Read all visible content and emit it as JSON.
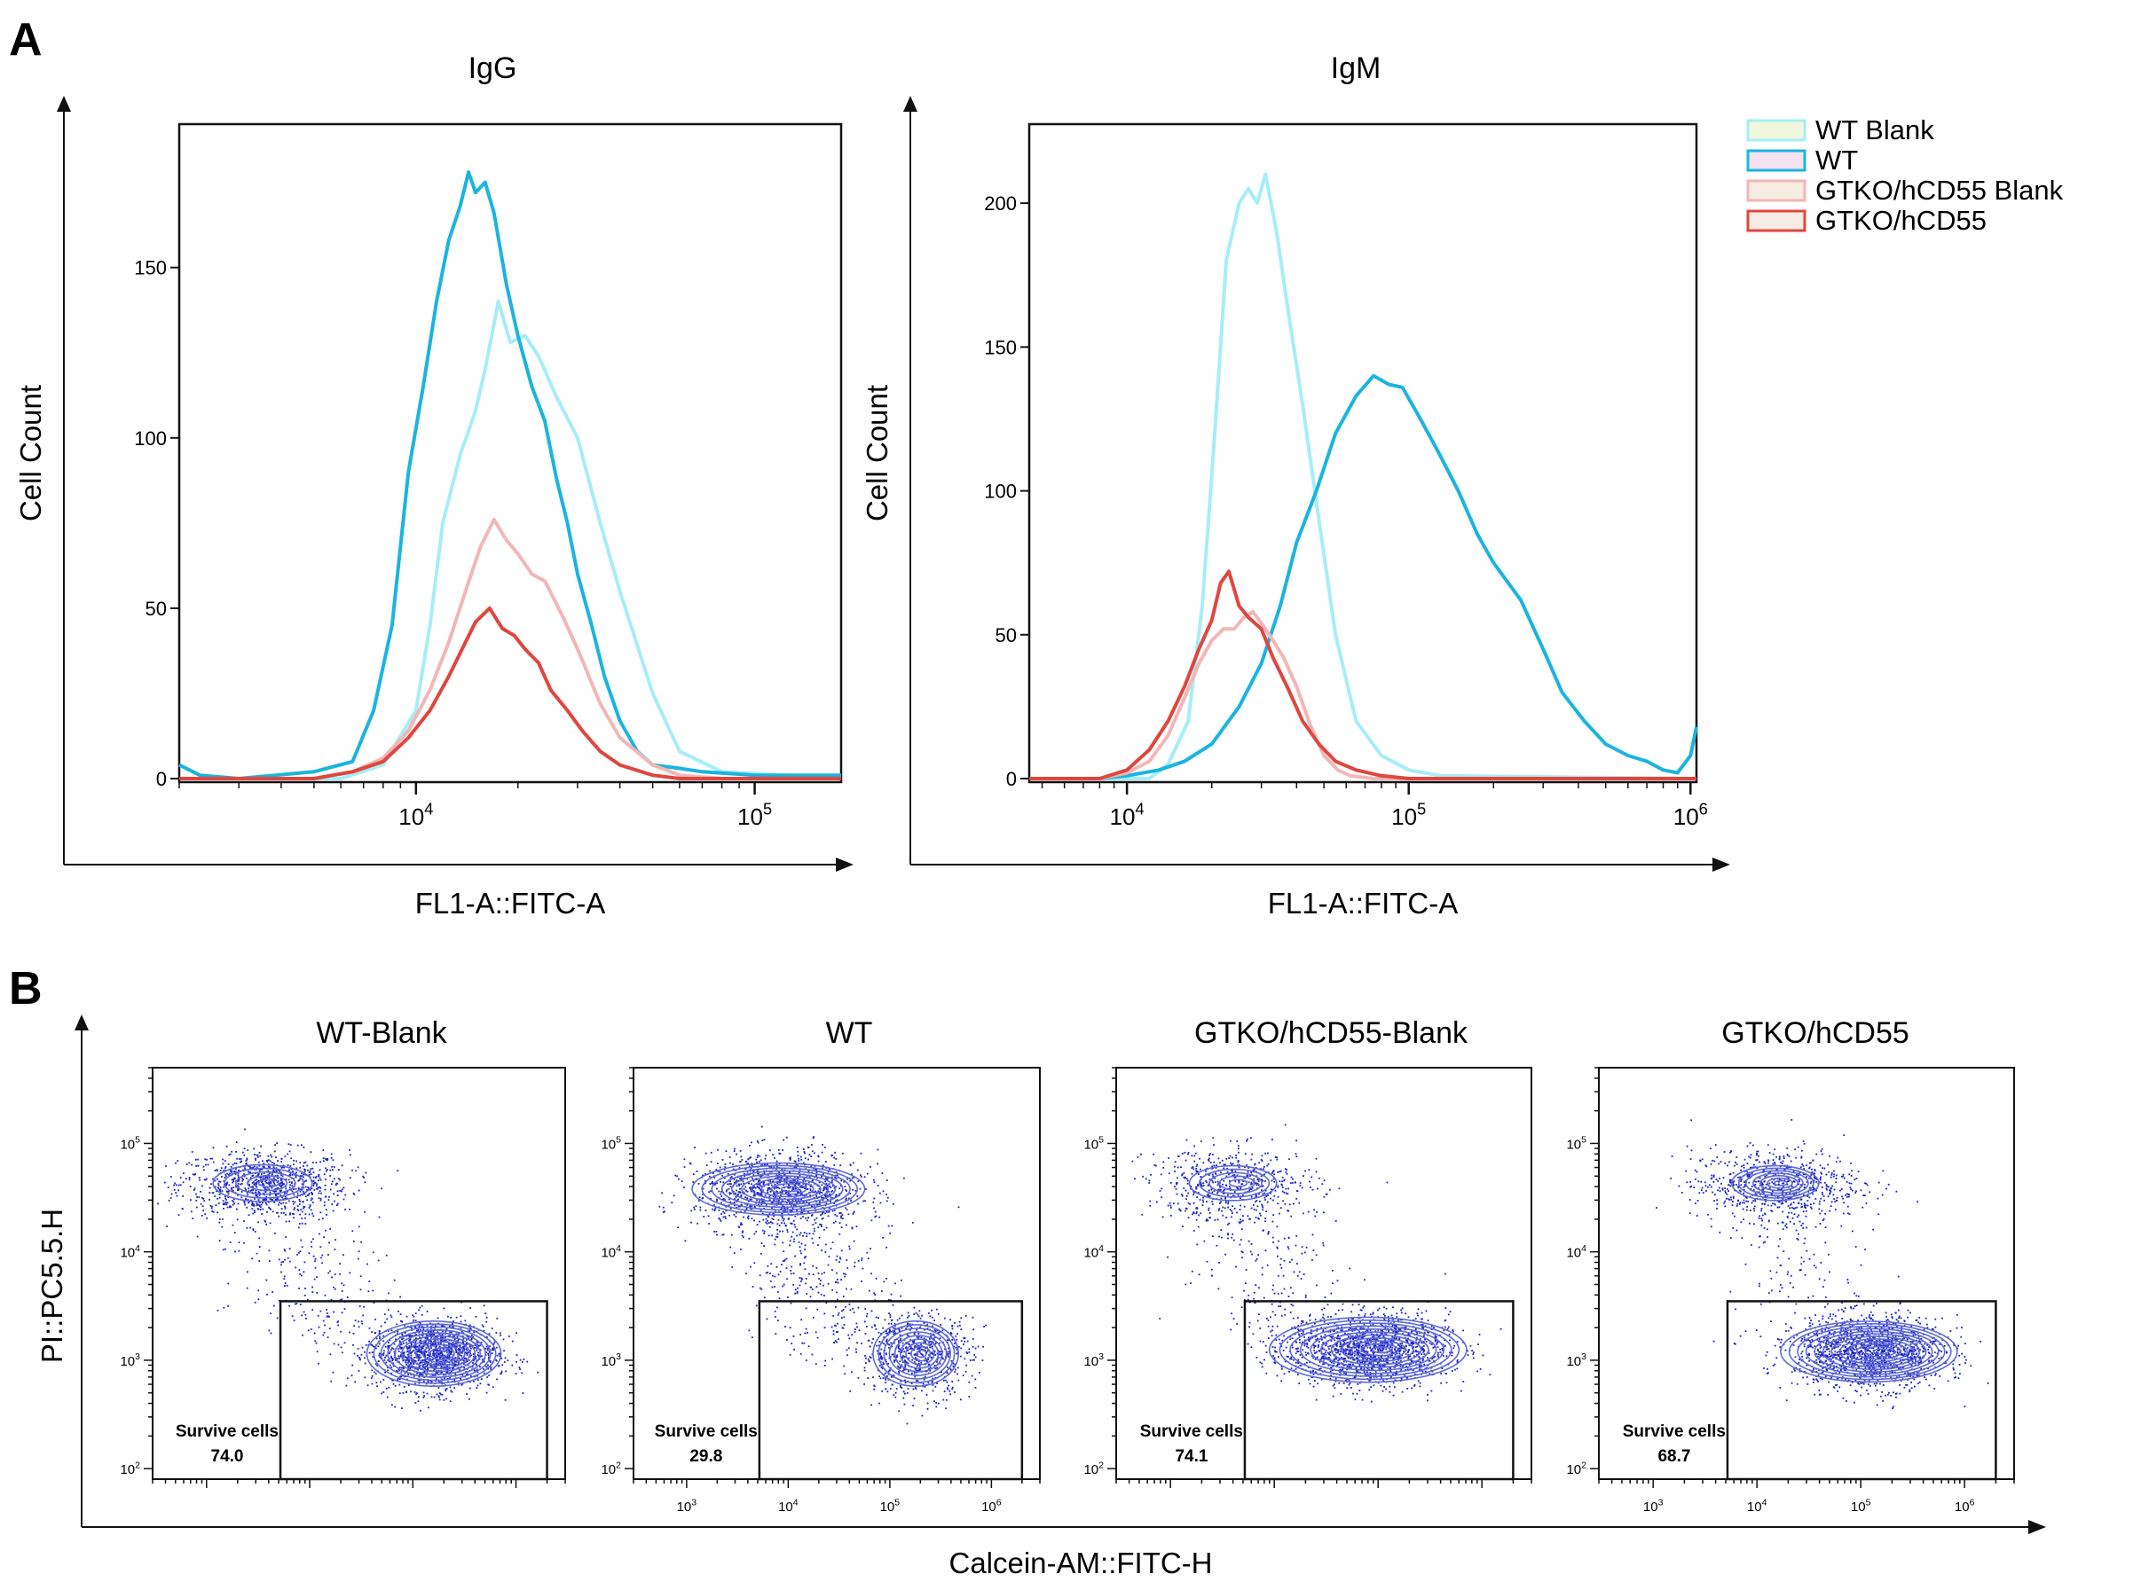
{
  "panel_labels": {
    "a": "A",
    "b": "B"
  },
  "legend": {
    "items": [
      {
        "label": "WT Blank",
        "color": "#a6eef5",
        "fill": "#f1f6df"
      },
      {
        "label": "WT",
        "color": "#1bb4df",
        "fill": "#f3e2ef"
      },
      {
        "label": "GTKO/hCD55 Blank",
        "color": "#f2b6b6",
        "fill": "#f6ece2"
      },
      {
        "label": "GTKO/hCD55",
        "color": "#e0463e",
        "fill": "#f6ece2"
      }
    ]
  },
  "chart_data": [
    {
      "type": "line",
      "title": "IgG",
      "xlabel": "FL1-A::FITC-A",
      "ylabel": "Cell Count",
      "x_scale": "log",
      "xlim": [
        2000,
        180000
      ],
      "ylim": [
        0,
        190
      ],
      "x_ticks": [
        {
          "base": "10",
          "exp": "4"
        },
        {
          "base": "10",
          "exp": "5"
        }
      ],
      "y_ticks": [
        "0",
        "50",
        "100",
        "150"
      ],
      "y_tick_values": [
        0,
        50,
        100,
        150
      ],
      "series": [
        {
          "name": "WT Blank",
          "color": "#a6eef5",
          "x": [
            2000,
            6000,
            8000,
            10000,
            11000,
            12000,
            13500,
            15000,
            16000,
            17500,
            19000,
            21000,
            23000,
            26000,
            30000,
            35000,
            40000,
            50000,
            60000,
            80000,
            180000
          ],
          "y": [
            0,
            0,
            4,
            20,
            45,
            75,
            95,
            108,
            120,
            140,
            128,
            130,
            124,
            112,
            100,
            75,
            55,
            25,
            8,
            2,
            0
          ]
        },
        {
          "name": "WT",
          "color": "#1bb4df",
          "x": [
            2000,
            2300,
            3000,
            5000,
            6500,
            7500,
            8500,
            9500,
            10500,
            11500,
            12500,
            13500,
            14300,
            15000,
            16000,
            17000,
            18500,
            20000,
            22000,
            24000,
            26000,
            28000,
            30000,
            33000,
            36000,
            40000,
            45000,
            50000,
            60000,
            70000,
            100000,
            180000
          ],
          "y": [
            4,
            1,
            0,
            2,
            5,
            20,
            45,
            90,
            115,
            140,
            158,
            168,
            178,
            172,
            175,
            166,
            145,
            130,
            115,
            105,
            88,
            75,
            60,
            45,
            30,
            17,
            8,
            4,
            3,
            2,
            1,
            1
          ]
        },
        {
          "name": "GTKO/hCD55 Blank",
          "color": "#f2b6b6",
          "x": [
            2000,
            5000,
            6500,
            8000,
            9500,
            11000,
            12500,
            14000,
            15500,
            17000,
            18500,
            20000,
            22000,
            24000,
            27000,
            30000,
            35000,
            40000,
            50000,
            60000,
            80000,
            180000
          ],
          "y": [
            0,
            0,
            2,
            6,
            14,
            26,
            40,
            55,
            68,
            76,
            70,
            66,
            60,
            58,
            48,
            38,
            22,
            12,
            4,
            1,
            0,
            0
          ]
        },
        {
          "name": "GTKO/hCD55",
          "color": "#e0463e",
          "x": [
            2000,
            5000,
            6500,
            8000,
            9500,
            11000,
            12500,
            14000,
            15000,
            16500,
            18000,
            19500,
            21000,
            23000,
            25000,
            28000,
            31000,
            35000,
            40000,
            50000,
            60000,
            80000,
            180000
          ],
          "y": [
            0,
            0,
            2,
            5,
            12,
            20,
            30,
            40,
            46,
            50,
            44,
            42,
            38,
            34,
            26,
            20,
            14,
            8,
            4,
            1,
            0,
            0,
            0
          ]
        }
      ]
    },
    {
      "type": "line",
      "title": "IgM",
      "xlabel": "FL1-A::FITC-A",
      "ylabel": "Cell Count",
      "x_scale": "log",
      "xlim": [
        4500,
        1050000
      ],
      "ylim": [
        0,
        225
      ],
      "x_ticks": [
        {
          "base": "10",
          "exp": "4"
        },
        {
          "base": "10",
          "exp": "5"
        },
        {
          "base": "10",
          "exp": "6"
        }
      ],
      "y_ticks": [
        "0",
        "50",
        "100",
        "150",
        "200"
      ],
      "y_tick_values": [
        0,
        50,
        100,
        150,
        200
      ],
      "series": [
        {
          "name": "WT Blank",
          "color": "#a6eef5",
          "x": [
            4500,
            12000,
            14000,
            16500,
            18500,
            20500,
            22500,
            25000,
            27000,
            29000,
            31000,
            34000,
            37000,
            42000,
            48000,
            55000,
            65000,
            80000,
            100000,
            130000,
            1050000
          ],
          "y": [
            0,
            0,
            5,
            20,
            60,
            120,
            180,
            200,
            205,
            200,
            210,
            190,
            165,
            130,
            90,
            50,
            20,
            8,
            3,
            1,
            0
          ]
        },
        {
          "name": "WT",
          "color": "#1bb4df",
          "x": [
            4500,
            8000,
            10000,
            13000,
            16000,
            20000,
            25000,
            30000,
            35000,
            40000,
            47000,
            55000,
            65000,
            75000,
            85000,
            95000,
            110000,
            125000,
            150000,
            175000,
            200000,
            250000,
            300000,
            350000,
            420000,
            500000,
            600000,
            700000,
            800000,
            900000,
            1000000,
            1050000
          ],
          "y": [
            0,
            0,
            1,
            3,
            6,
            12,
            25,
            40,
            60,
            82,
            100,
            120,
            133,
            140,
            137,
            136,
            125,
            115,
            100,
            85,
            75,
            62,
            45,
            30,
            20,
            12,
            8,
            6,
            3,
            2,
            8,
            18
          ]
        },
        {
          "name": "GTKO/hCD55 Blank",
          "color": "#f2b6b6",
          "x": [
            4500,
            8000,
            10000,
            12000,
            14000,
            16000,
            18000,
            20000,
            22000,
            24000,
            26000,
            28000,
            30000,
            33000,
            36000,
            40000,
            45000,
            50000,
            56000,
            62000,
            75000,
            100000,
            1050000
          ],
          "y": [
            0,
            0,
            2,
            6,
            15,
            28,
            40,
            48,
            52,
            52,
            56,
            58,
            54,
            48,
            42,
            32,
            18,
            8,
            3,
            1,
            0,
            0,
            0
          ]
        },
        {
          "name": "GTKO/hCD55",
          "color": "#e0463e",
          "x": [
            4500,
            8000,
            10000,
            12000,
            14000,
            16000,
            18000,
            20000,
            21500,
            23000,
            25000,
            27000,
            30000,
            33000,
            37000,
            42000,
            48000,
            55000,
            65000,
            80000,
            100000,
            1050000
          ],
          "y": [
            0,
            0,
            3,
            10,
            20,
            32,
            45,
            55,
            68,
            72,
            60,
            56,
            52,
            42,
            32,
            20,
            12,
            6,
            3,
            1,
            0,
            0
          ]
        }
      ]
    },
    {
      "type": "scatter",
      "title": "WT-Blank",
      "gate_label": "Survive cells",
      "gate_value": "74.0",
      "gate_value_num": 74.0,
      "x_scale": "log",
      "y_scale": "log",
      "xlim": [
        300,
        3000000
      ],
      "ylim": [
        80,
        500000
      ],
      "x_ticks": [],
      "y_ticks": [
        {
          "base": "10",
          "exp": "2"
        },
        {
          "base": "10",
          "exp": "3"
        },
        {
          "base": "10",
          "exp": "4"
        },
        {
          "base": "10",
          "exp": "5"
        }
      ],
      "gate": {
        "x": [
          5200,
          2000000
        ],
        "y": [
          80,
          3500
        ]
      },
      "populations": [
        {
          "cx": 3500,
          "cy": 43000,
          "rx": 0.48,
          "ry": 0.17,
          "rings": 5,
          "points": 850,
          "spread": [
            0.75,
            0.28
          ]
        },
        {
          "cx": 160000,
          "cy": 1150,
          "rx": 0.65,
          "ry": 0.3,
          "rings": 11,
          "points": 1400,
          "spread": [
            0.55,
            0.3
          ]
        }
      ],
      "bridge_points": 260
    },
    {
      "type": "scatter",
      "title": "WT",
      "gate_label": "Survive cells",
      "gate_value": "29.8",
      "gate_value_num": 29.8,
      "x_scale": "log",
      "y_scale": "log",
      "xlim": [
        300,
        3000000
      ],
      "ylim": [
        80,
        500000
      ],
      "x_ticks": [
        {
          "base": "10",
          "exp": "3"
        },
        {
          "base": "10",
          "exp": "4"
        },
        {
          "base": "10",
          "exp": "5"
        },
        {
          "base": "10",
          "exp": "6"
        }
      ],
      "y_ticks": [
        {
          "base": "10",
          "exp": "2"
        },
        {
          "base": "10",
          "exp": "3"
        },
        {
          "base": "10",
          "exp": "4"
        },
        {
          "base": "10",
          "exp": "5"
        }
      ],
      "gate": {
        "x": [
          5200,
          2000000
        ],
        "y": [
          80,
          3500
        ]
      },
      "populations": [
        {
          "cx": 8000,
          "cy": 38000,
          "rx": 0.85,
          "ry": 0.24,
          "rings": 10,
          "points": 1100,
          "spread": [
            0.75,
            0.32
          ]
        },
        {
          "cx": 180000,
          "cy": 1150,
          "rx": 0.42,
          "ry": 0.3,
          "rings": 9,
          "points": 650,
          "spread": [
            0.5,
            0.35
          ]
        }
      ],
      "bridge_points": 380
    },
    {
      "type": "scatter",
      "title": "GTKO/hCD55-Blank",
      "gate_label": "Survive cells",
      "gate_value": "74.1",
      "gate_value_num": 74.1,
      "x_scale": "log",
      "y_scale": "log",
      "xlim": [
        300,
        3000000
      ],
      "ylim": [
        80,
        500000
      ],
      "x_ticks": [],
      "y_ticks": [
        {
          "base": "10",
          "exp": "2"
        },
        {
          "base": "10",
          "exp": "3"
        },
        {
          "base": "10",
          "exp": "4"
        },
        {
          "base": "10",
          "exp": "5"
        }
      ],
      "gate": {
        "x": [
          5200,
          2000000
        ],
        "y": [
          80,
          3500
        ]
      },
      "populations": [
        {
          "cx": 4000,
          "cy": 43000,
          "rx": 0.42,
          "ry": 0.16,
          "rings": 5,
          "points": 500,
          "spread": [
            0.75,
            0.3
          ]
        },
        {
          "cx": 80000,
          "cy": 1250,
          "rx": 0.95,
          "ry": 0.3,
          "rings": 11,
          "points": 1500,
          "spread": [
            0.7,
            0.3
          ]
        }
      ],
      "bridge_points": 260
    },
    {
      "type": "scatter",
      "title": "GTKO/hCD55",
      "gate_label": "Survive cells",
      "gate_value": "68.7",
      "gate_value_num": 68.7,
      "x_scale": "log",
      "y_scale": "log",
      "xlim": [
        300,
        3000000
      ],
      "ylim": [
        80,
        500000
      ],
      "x_ticks": [
        {
          "base": "10",
          "exp": "3"
        },
        {
          "base": "10",
          "exp": "4"
        },
        {
          "base": "10",
          "exp": "5"
        },
        {
          "base": "10",
          "exp": "6"
        }
      ],
      "y_ticks": [
        {
          "base": "10",
          "exp": "2"
        },
        {
          "base": "10",
          "exp": "3"
        },
        {
          "base": "10",
          "exp": "4"
        },
        {
          "base": "10",
          "exp": "5"
        }
      ],
      "gate": {
        "x": [
          5200,
          2000000
        ],
        "y": [
          80,
          3500
        ]
      },
      "populations": [
        {
          "cx": 15000,
          "cy": 43000,
          "rx": 0.42,
          "ry": 0.16,
          "rings": 7,
          "points": 650,
          "spread": [
            0.75,
            0.3
          ]
        },
        {
          "cx": 120000,
          "cy": 1200,
          "rx": 0.85,
          "ry": 0.28,
          "rings": 12,
          "points": 1400,
          "spread": [
            0.65,
            0.3
          ]
        }
      ],
      "bridge_points": 200
    }
  ],
  "panel_b_axes": {
    "ylabel": "PI::PC5.5.H",
    "xlabel": "Calcein-AM::FITC-H"
  }
}
